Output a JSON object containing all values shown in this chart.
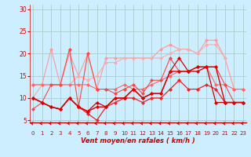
{
  "x": [
    0,
    1,
    2,
    3,
    4,
    5,
    6,
    7,
    8,
    9,
    10,
    11,
    12,
    13,
    14,
    15,
    16,
    17,
    18,
    19,
    20,
    21,
    22,
    23
  ],
  "series": [
    {
      "color": "#ff9999",
      "lw": 0.8,
      "values": [
        13,
        13,
        21,
        13,
        20,
        15,
        20,
        12,
        19,
        19,
        19,
        19,
        19,
        19,
        21,
        22,
        21,
        21,
        20,
        23,
        23,
        19,
        12,
        12
      ]
    },
    {
      "color": "#ffaaaa",
      "lw": 0.8,
      "values": [
        10,
        13,
        13,
        13,
        13,
        15,
        14,
        15,
        18,
        18,
        19,
        19,
        19,
        19,
        19,
        20,
        21,
        21,
        20,
        22,
        22,
        19,
        12,
        12
      ]
    },
    {
      "color": "#ff6666",
      "lw": 0.8,
      "values": [
        13,
        13,
        13,
        13,
        13,
        13,
        13,
        12,
        12,
        12,
        13,
        12,
        12,
        13,
        14,
        15,
        16,
        16,
        17,
        17,
        13,
        13,
        12,
        12
      ]
    },
    {
      "color": "#ff4444",
      "lw": 0.8,
      "values": [
        7.5,
        9,
        13,
        13,
        21,
        8,
        20,
        12,
        12,
        11,
        12,
        13,
        11,
        14,
        14,
        19,
        16,
        16,
        17,
        17,
        17,
        13,
        9,
        9
      ]
    },
    {
      "color": "#ee2222",
      "lw": 0.9,
      "values": [
        10,
        9,
        8,
        7.5,
        10,
        8,
        6.5,
        5,
        8,
        9,
        10,
        10,
        9,
        10,
        10,
        12,
        14,
        12,
        12,
        13,
        12,
        9,
        9,
        9
      ]
    },
    {
      "color": "#cc0000",
      "lw": 0.9,
      "values": [
        10,
        9,
        8,
        7.5,
        10,
        8,
        7,
        9,
        8,
        10,
        10,
        12,
        10,
        11,
        11,
        16,
        19,
        16,
        17,
        17,
        9,
        9,
        9,
        9
      ]
    },
    {
      "color": "#dd0000",
      "lw": 1.0,
      "values": [
        10,
        9,
        8,
        7.5,
        10,
        8,
        7,
        8,
        8,
        10,
        10,
        12,
        10,
        11,
        11,
        16,
        16,
        16,
        16,
        17,
        17,
        9,
        9,
        9
      ]
    }
  ],
  "yticks": [
    5,
    10,
    15,
    20,
    25,
    30
  ],
  "xticks": [
    0,
    1,
    2,
    3,
    4,
    5,
    6,
    7,
    8,
    9,
    10,
    11,
    12,
    13,
    14,
    15,
    16,
    17,
    18,
    19,
    20,
    21,
    22,
    23
  ],
  "xlim": [
    -0.3,
    23.3
  ],
  "ylim": [
    4.5,
    31
  ],
  "xlabel": "Vent moyen/en rafales ( km/h )",
  "bg_color": "#cceeff",
  "grid_color": "#aacccc",
  "axis_color": "#cc0000",
  "tick_label_color": "#cc0000",
  "xlabel_color": "#cc0000",
  "arrow_color": "#cc0000"
}
